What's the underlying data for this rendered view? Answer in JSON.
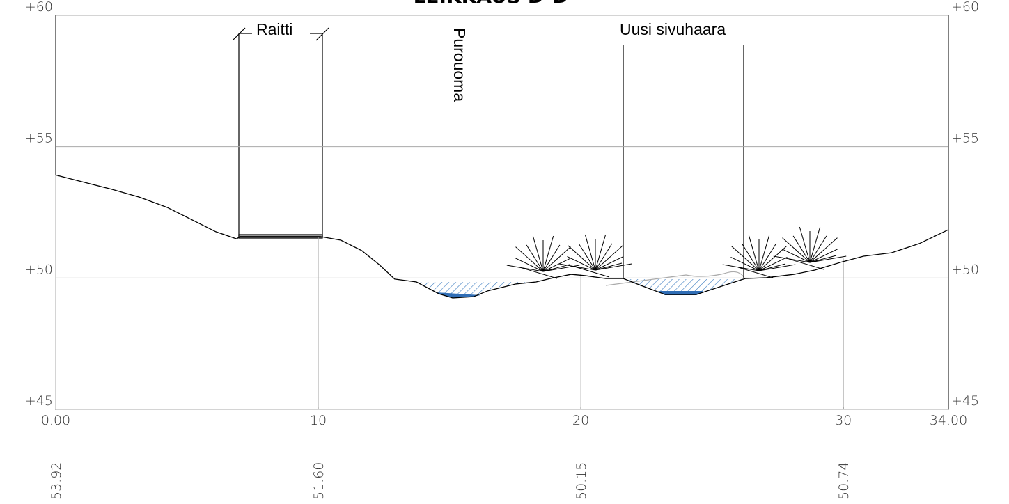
{
  "chart_data": {
    "type": "line",
    "title": "LEIKKAUS D-D",
    "annotations": [
      "Raitti",
      "Purouoma",
      "Uusi sivuhaara"
    ],
    "xlim": [
      0,
      34
    ],
    "ylim": [
      45,
      60
    ],
    "xticks": [
      {
        "value": 0,
        "label": "0.00"
      },
      10,
      20,
      30,
      {
        "value": 34,
        "label": "34.00"
      }
    ],
    "yticks": [
      {
        "value": 45,
        "label": "+45"
      },
      {
        "value": 50,
        "label": "+50"
      },
      {
        "value": 55,
        "label": "+55"
      },
      {
        "value": 60,
        "label": "+60"
      }
    ],
    "grid": true,
    "series": [
      {
        "color": "#000000",
        "x": [
          0,
          1.06,
          2.12,
          3.18,
          4.24,
          5.3,
          6.1,
          6.89,
          7.02,
          10.07,
          10.86,
          11.66,
          12.32,
          12.91,
          13.74,
          14.59,
          15.12,
          15.92,
          16.45,
          17.51,
          18.3,
          18.83,
          19.63,
          20.16,
          20.95,
          21.62,
          22.28,
          23.21,
          24.4,
          25.46,
          26.26,
          27.06,
          28.12,
          28.91,
          29.97,
          30.77,
          31.83,
          32.89,
          34
        ],
        "values": [
          53.92,
          53.65,
          53.38,
          53.08,
          52.69,
          52.16,
          51.76,
          51.49,
          51.58,
          51.58,
          51.44,
          51.04,
          50.51,
          49.96,
          49.85,
          49.4,
          49.24,
          49.29,
          49.51,
          49.77,
          49.85,
          49.98,
          50.14,
          50.09,
          49.98,
          49.98,
          49.72,
          49.37,
          49.37,
          49.72,
          49.98,
          50.01,
          50.14,
          50.3,
          50.62,
          50.83,
          50.96,
          51.31,
          51.84
        ]
      }
    ],
    "stations": {
      "x": [
        0,
        10,
        20,
        30
      ],
      "values": [
        53.92,
        51.6,
        50.15,
        50.74
      ],
      "value_labels": [
        "53.92",
        "51.60",
        "50.15",
        "50.74"
      ]
    }
  }
}
